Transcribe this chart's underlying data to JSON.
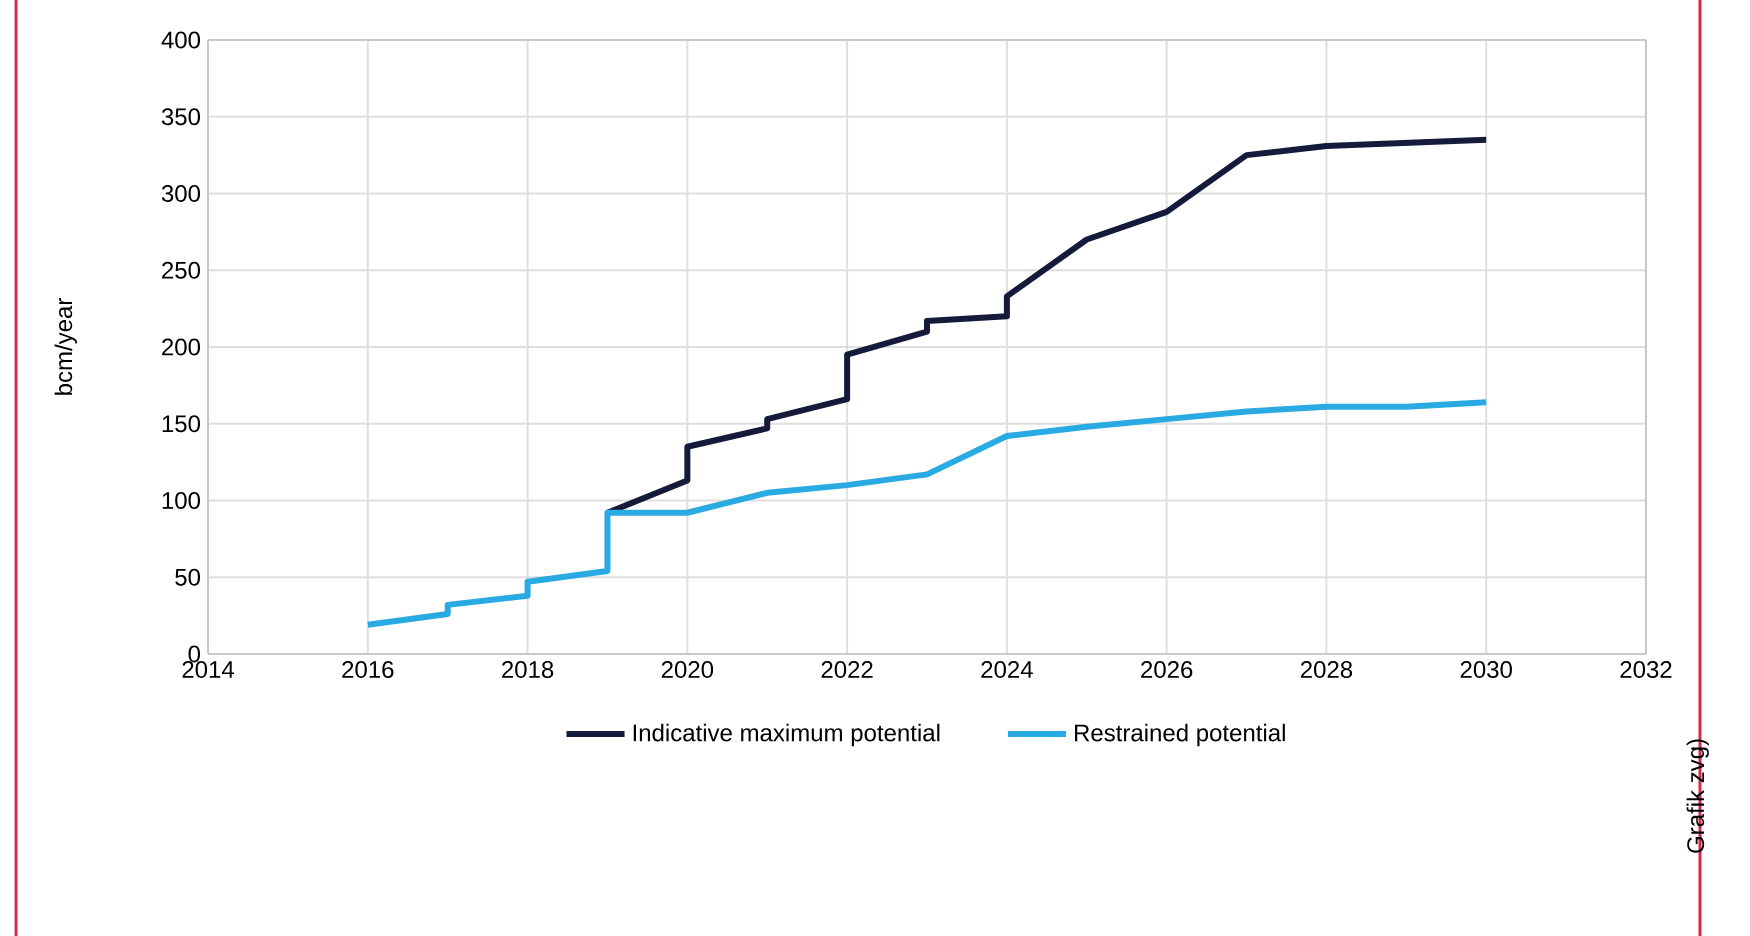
{
  "chart_data": {
    "type": "line",
    "ylabel": "bcm/year",
    "xlim": [
      2014,
      2032
    ],
    "xticks": [
      2014,
      2016,
      2018,
      2020,
      2022,
      2024,
      2026,
      2028,
      2030,
      2032
    ],
    "ylim": [
      0,
      400
    ],
    "yticks": [
      0,
      50,
      100,
      150,
      200,
      250,
      300,
      350,
      400
    ],
    "grid": true,
    "legend": "bottom",
    "marker": "none",
    "line_style": "solid",
    "series": [
      {
        "name": "Indicative maximum potential",
        "color": "#141a3a",
        "x": [
          2019,
          2020,
          2020,
          2021,
          2021,
          2022,
          2022,
          2023,
          2023,
          2024,
          2024,
          2025,
          2026,
          2027,
          2028,
          2030
        ],
        "values": [
          92,
          113,
          135,
          147,
          153,
          166,
          195,
          210,
          217,
          220,
          233,
          270,
          288,
          325,
          331,
          335
        ]
      },
      {
        "name": "Restrained potential",
        "color": "#29aae2",
        "x": [
          2016,
          2017,
          2017,
          2018,
          2018,
          2019,
          2019,
          2020,
          2021,
          2022,
          2023,
          2024,
          2025,
          2026,
          2027,
          2028,
          2029,
          2030
        ],
        "values": [
          19,
          26,
          32,
          38,
          47,
          54,
          92,
          92,
          105,
          110,
          117,
          142,
          148,
          153,
          158,
          161,
          161,
          164
        ]
      }
    ],
    "annotations": [
      "Grafik zvg)"
    ]
  }
}
